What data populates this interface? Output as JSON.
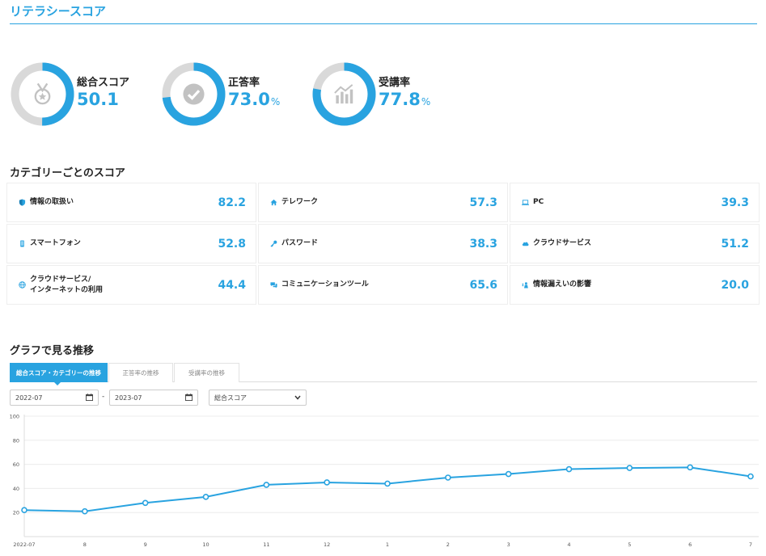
{
  "page": {
    "title": "リテラシースコア"
  },
  "summary": [
    {
      "label": "総合スコア",
      "value": "50.1",
      "unit": "",
      "fraction": 0.501,
      "icon": "medal-icon"
    },
    {
      "label": "正答率",
      "value": "73.0",
      "unit": "%",
      "fraction": 0.73,
      "icon": "check-circle-icon"
    },
    {
      "label": "受講率",
      "value": "77.8",
      "unit": "%",
      "fraction": 0.778,
      "icon": "bar-chart-icon"
    }
  ],
  "categories_title": "カテゴリーごとのスコア",
  "categories": [
    {
      "name": "情報の取扱い",
      "value": "82.2",
      "icon": "shield-icon"
    },
    {
      "name": "テレワーク",
      "value": "57.3",
      "icon": "home-icon"
    },
    {
      "name": "PC",
      "value": "39.3",
      "icon": "laptop-icon"
    },
    {
      "name": "スマートフォン",
      "value": "52.8",
      "icon": "smartphone-icon"
    },
    {
      "name": "パスワード",
      "value": "38.3",
      "icon": "key-icon"
    },
    {
      "name": "クラウドサービス",
      "value": "51.2",
      "icon": "cloud-icon"
    },
    {
      "name": "クラウドサービス/\nインターネットの利用",
      "value": "44.4",
      "icon": "globe-icon"
    },
    {
      "name": "コミュニケーションツール",
      "value": "65.6",
      "icon": "chat-icon"
    },
    {
      "name": "情報漏えいの影響",
      "value": "20.0",
      "icon": "leak-icon"
    }
  ],
  "graph_title": "グラフで見る推移",
  "tabs": [
    {
      "label": "総合スコア・カテゴリーの推移",
      "active": true
    },
    {
      "label": "正答率の推移",
      "active": false
    },
    {
      "label": "受講率の推移",
      "active": false
    }
  ],
  "filters": {
    "start_month": "2022-07",
    "separator": "-",
    "end_month": "2023-07",
    "metric": "総合スコア"
  },
  "colors": {
    "accent": "#29a3e0",
    "track": "#d9d9d9"
  },
  "chart_data": {
    "type": "line",
    "categories": [
      "2022-07",
      "8",
      "9",
      "10",
      "11",
      "12",
      "1",
      "2",
      "3",
      "4",
      "5",
      "6",
      "7"
    ],
    "values": [
      22,
      21,
      28,
      33,
      43,
      45,
      44,
      49,
      52,
      56,
      57,
      57.5,
      50
    ],
    "ylim": [
      0,
      100
    ],
    "yticks": [
      "100",
      "80",
      "60",
      "40",
      "20"
    ],
    "grid": true
  }
}
